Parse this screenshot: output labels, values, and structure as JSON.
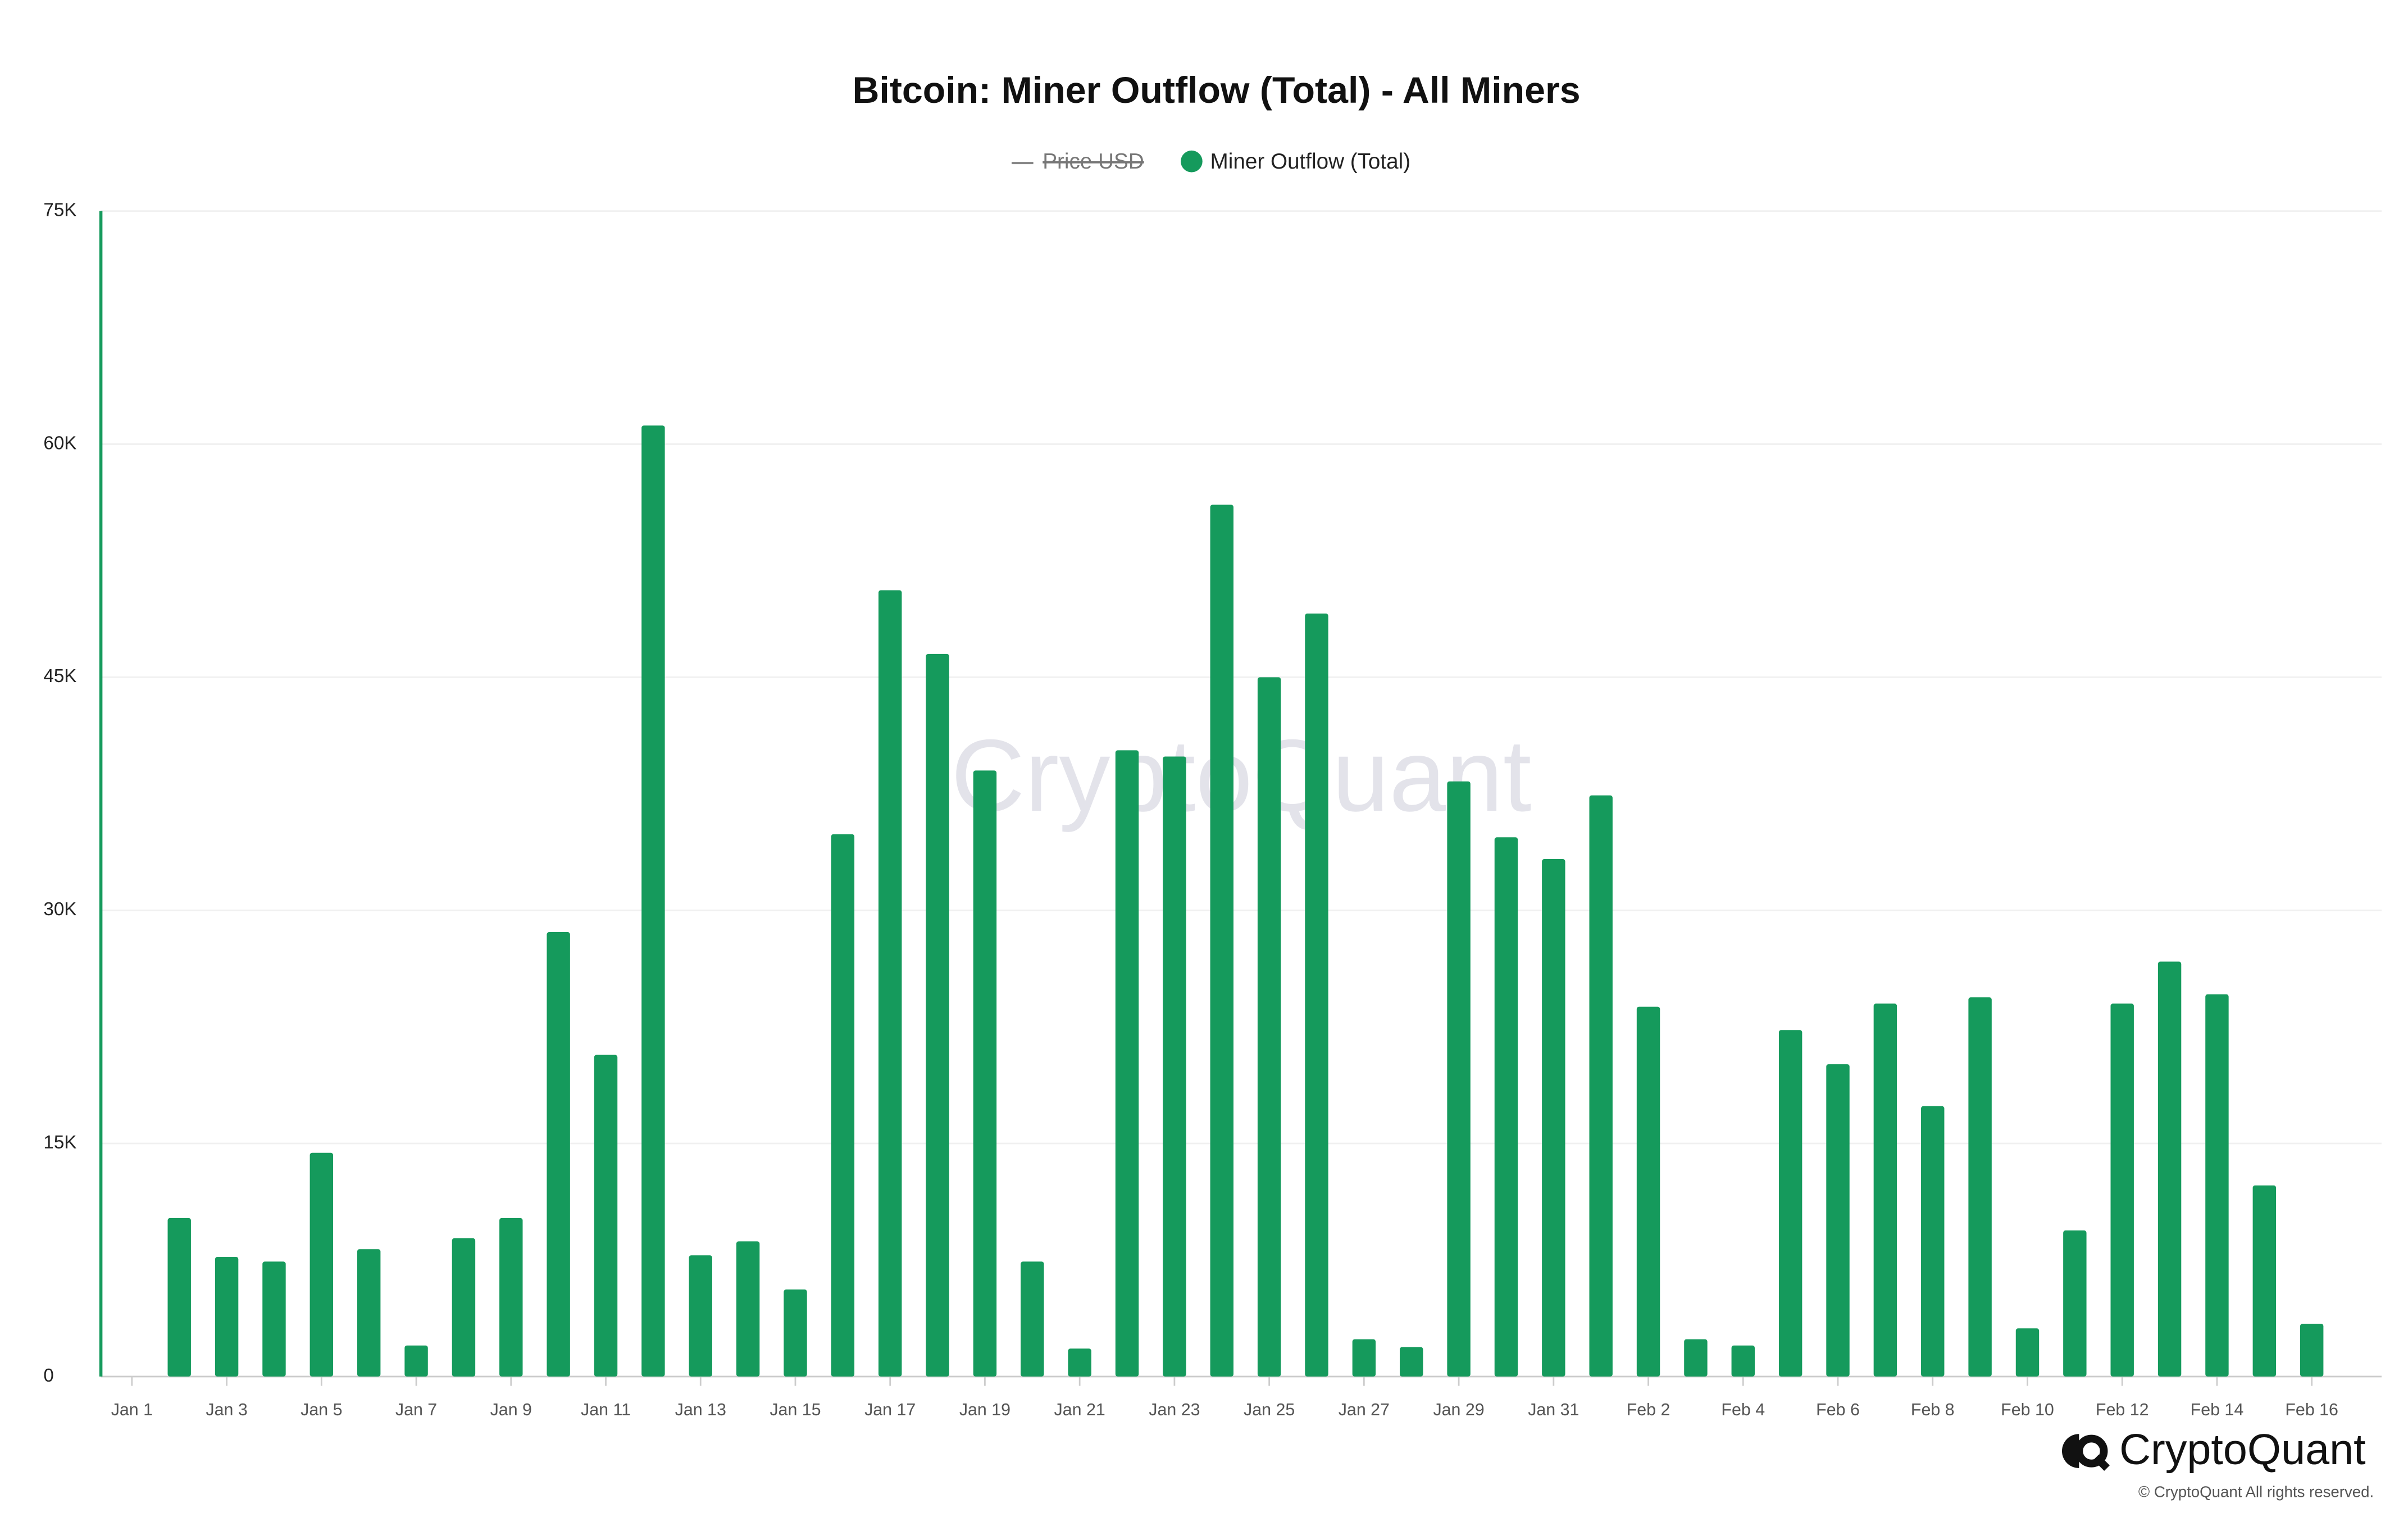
{
  "chart_data": {
    "type": "bar",
    "title": "Bitcoin: Miner Outflow (Total) - All Miners",
    "categories": [
      "Jan 1",
      null,
      "Jan 3",
      null,
      "Jan 5",
      null,
      "Jan 7",
      null,
      "Jan 9",
      null,
      "Jan 11",
      null,
      "Jan 13",
      null,
      "Jan 15",
      null,
      "Jan 17",
      null,
      "Jan 19",
      null,
      "Jan 21",
      null,
      "Jan 23",
      null,
      "Jan 25",
      null,
      "Jan 27",
      null,
      "Jan 29",
      null,
      "Jan 31",
      null,
      "Feb 2",
      null,
      "Feb 4",
      null,
      "Feb 6",
      null,
      "Feb 8",
      null,
      "Feb 10",
      null,
      "Feb 12",
      null,
      "Feb 14",
      null,
      "Feb 16"
    ],
    "series": [
      {
        "name": "Price USD",
        "color": "#888888",
        "hidden": true,
        "values": [
          null,
          null,
          null,
          null,
          null,
          null,
          null,
          null,
          null,
          null,
          null,
          null,
          null,
          null,
          null,
          null,
          null,
          null,
          null,
          null,
          null,
          null,
          null,
          null,
          null,
          null,
          null,
          null,
          null,
          null,
          null,
          null,
          null,
          null,
          null,
          null,
          null,
          null,
          null,
          null,
          null,
          null,
          null,
          null,
          null,
          null,
          null
        ]
      },
      {
        "name": "Miner Outflow (Total)",
        "color": "#159a5c",
        "values": [
          null,
          10200,
          7700,
          7400,
          14400,
          8200,
          2000,
          8900,
          10200,
          28600,
          20700,
          61200,
          7800,
          8700,
          5600,
          34900,
          50600,
          46500,
          39000,
          7400,
          1800,
          40300,
          39900,
          56100,
          45000,
          49100,
          2400,
          1900,
          38300,
          34700,
          33300,
          37400,
          23800,
          2400,
          2000,
          22300,
          20100,
          24000,
          17400,
          24400,
          3100,
          9400,
          24000,
          26700,
          24600,
          12300,
          3400
        ]
      }
    ],
    "ylim": [
      0,
      75000
    ],
    "yticks": [
      0,
      {
        "value": 15000,
        "label": "15K"
      },
      {
        "value": 30000,
        "label": "30K"
      },
      {
        "value": 45000,
        "label": "45K"
      },
      {
        "value": 60000,
        "label": "60K"
      },
      {
        "value": 75000,
        "label": "75K"
      }
    ],
    "grid": true,
    "watermark": "CryptoQuant",
    "brand": "CryptoQuant",
    "copyright": "© CryptoQuant All rights reserved."
  }
}
